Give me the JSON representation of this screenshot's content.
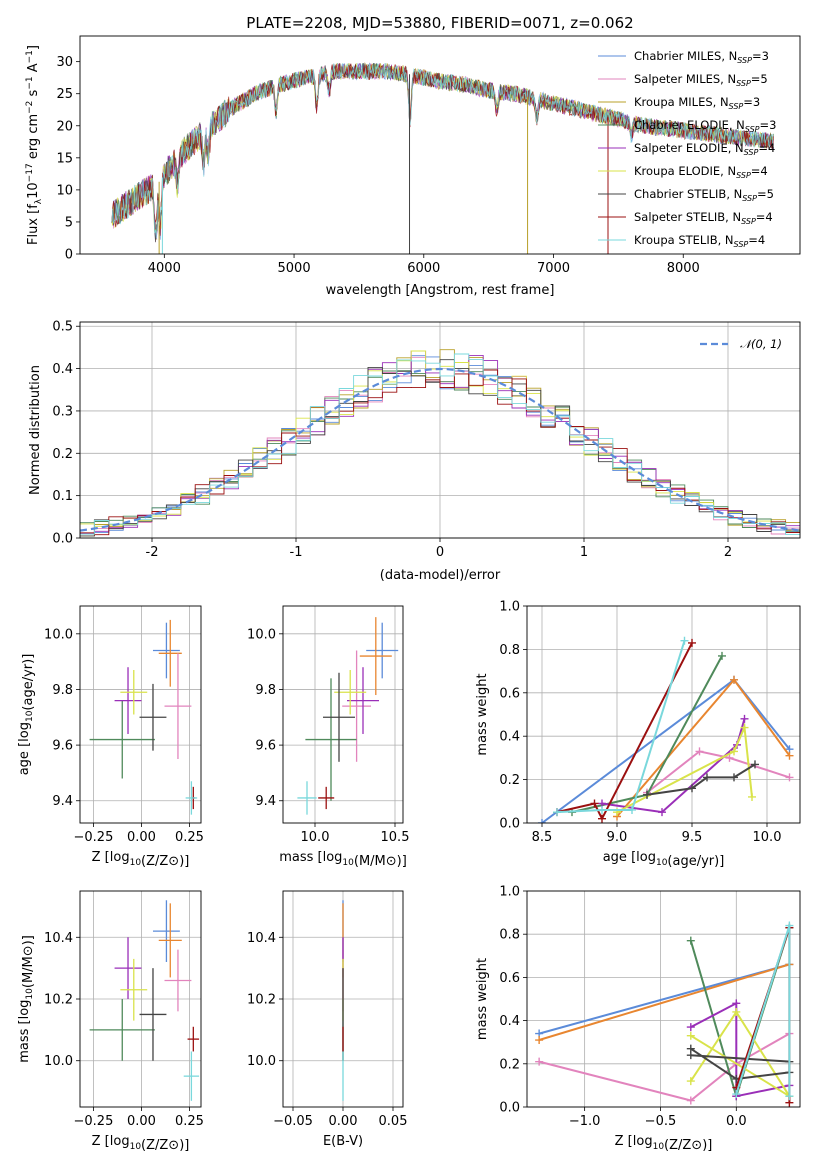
{
  "chart_data": [
    {
      "id": "spectrum",
      "type": "line",
      "title": "PLATE=2208, MJD=53880, FIBERID=0071, z=0.062",
      "xlabel": "wavelength [Angstrom, rest frame]",
      "ylabel": "Flux [f$_\\lambda$10$^{-17}$ erg cm$^{-2}$ s$^{-1}$ A$^{-1}$]",
      "ylabel_parts": [
        "Flux [f",
        "λ",
        "10",
        "−17",
        " erg cm",
        "−2",
        " s",
        "−1",
        " A",
        "−1",
        "]"
      ],
      "xlim": [
        3350,
        8900
      ],
      "ylim": [
        0,
        34
      ],
      "xticks": [
        4000,
        5000,
        6000,
        7000,
        8000
      ],
      "yticks": [
        0,
        5,
        10,
        15,
        20,
        25,
        30
      ],
      "grid": false,
      "legend_position": "top-right",
      "series": [
        {
          "name": "Chabrier MILES",
          "n": "3",
          "color": "#5b8bd9"
        },
        {
          "name": "Salpeter MILES",
          "n": "5",
          "color": "#e284bd"
        },
        {
          "name": "Kroupa MILES",
          "n": "3",
          "color": "#b8a02a"
        },
        {
          "name": "Chabrier ELODIE",
          "n": "3",
          "color": "#4f8a5b"
        },
        {
          "name": "Salpeter ELODIE",
          "n": "4",
          "color": "#9a2fb8"
        },
        {
          "name": "Kroupa ELODIE",
          "n": "4",
          "color": "#d9e34a"
        },
        {
          "name": "Chabrier STELIB",
          "n": "5",
          "color": "#444444"
        },
        {
          "name": "Salpeter STELIB",
          "n": "4",
          "color": "#9b1010"
        },
        {
          "name": "Kroupa STELIB",
          "n": "4",
          "color": "#7ad8dc"
        }
      ],
      "n_prefix": "N",
      "n_subscript": "SSP",
      "continuum": {
        "x": [
          3600,
          3800,
          3950,
          4100,
          4300,
          4500,
          4700,
          4900,
          5100,
          5300,
          5500,
          5700,
          5900,
          6100,
          6300,
          6500,
          6700,
          6900,
          7100,
          7300,
          7500,
          7700,
          7900,
          8100,
          8300,
          8500,
          8700
        ],
        "y": [
          6,
          9,
          11,
          15,
          19,
          22.5,
          25,
          26.5,
          27.5,
          28.5,
          28.5,
          28.5,
          28,
          27,
          26.5,
          25.5,
          25,
          24,
          23,
          22,
          21,
          20,
          19.5,
          19,
          18.5,
          18,
          17.5
        ]
      },
      "spectrum_range": [
        3590,
        8700
      ]
    },
    {
      "id": "residuals",
      "type": "line",
      "xlabel": "(data-model)/error",
      "ylabel": "Normed distribution",
      "xlim": [
        -2.5,
        2.5
      ],
      "ylim": [
        0,
        0.51
      ],
      "xticks": [
        -2,
        -1,
        0,
        1,
        2
      ],
      "yticks": [
        0.0,
        0.1,
        0.2,
        0.3,
        0.4,
        0.5
      ],
      "ytick_labels": [
        "0.0",
        "0.1",
        "0.2",
        "0.3",
        "0.4",
        "0.5"
      ],
      "grid": true,
      "legend": "𝒩(0, 1)",
      "legend_position": "top-right",
      "reference_color": "#5b8bd9",
      "bin_width": 0.1,
      "bin_start": -2.5,
      "n_bins": 50
    },
    {
      "id": "age-vs-metallicity",
      "type": "scatter",
      "xlabel": "Z [log10(Z/Z⊙)]",
      "ylabel": "age  [log10(age/yr)]",
      "xlim": [
        -0.32,
        0.31
      ],
      "ylim": [
        9.32,
        10.1
      ],
      "xticks": [
        -0.25,
        0.0,
        0.25
      ],
      "xtick_labels": [
        "−0.25",
        "0.00",
        "0.25"
      ],
      "yticks": [
        9.4,
        9.6,
        9.8,
        10.0
      ],
      "ytick_labels": [
        "9.4",
        "9.6",
        "9.8",
        "10.0"
      ],
      "grid": true,
      "errorbars": [
        {
          "color": "#5b8bd9",
          "x": 0.13,
          "y": 9.94,
          "xerr": 0.07,
          "yerr": 0.1
        },
        {
          "color": "#e88630",
          "x": 0.15,
          "y": 9.93,
          "xerr": 0.06,
          "yerr": 0.12
        },
        {
          "color": "#e284bd",
          "x": 0.19,
          "y": 9.74,
          "xerr": 0.07,
          "yerr": 0.19
        },
        {
          "color": "#4f8a5b",
          "x": -0.1,
          "y": 9.62,
          "xerr": 0.17,
          "yerr": 0.14
        },
        {
          "color": "#9a2fb8",
          "x": -0.07,
          "y": 9.76,
          "xerr": 0.07,
          "yerr": 0.12
        },
        {
          "color": "#d9e34a",
          "x": -0.04,
          "y": 9.79,
          "xerr": 0.07,
          "yerr": 0.08
        },
        {
          "color": "#444444",
          "x": 0.06,
          "y": 9.7,
          "xerr": 0.07,
          "yerr": 0.12
        },
        {
          "color": "#9b1010",
          "x": 0.27,
          "y": 9.41,
          "xerr": 0.01,
          "yerr": 0.04
        },
        {
          "color": "#7ad8dc",
          "x": 0.26,
          "y": 9.41,
          "xerr": 0.03,
          "yerr": 0.06
        }
      ]
    },
    {
      "id": "age-vs-mass",
      "type": "scatter",
      "xlabel": "mass [log10(M/M⊙)]",
      "xlim": [
        9.8,
        10.55
      ],
      "ylim": [
        9.32,
        10.1
      ],
      "xticks": [
        10.0,
        10.5
      ],
      "xtick_labels": [
        "10.0",
        "10.5"
      ],
      "yticks": [
        9.4,
        9.6,
        9.8,
        10.0
      ],
      "ytick_labels": [
        "9.4",
        "9.6",
        "9.8",
        "10.0"
      ],
      "grid": true,
      "errorbars": [
        {
          "color": "#5b8bd9",
          "x": 10.42,
          "y": 9.94,
          "xerr": 0.1,
          "yerr": 0.1
        },
        {
          "color": "#e88630",
          "x": 10.38,
          "y": 9.92,
          "xerr": 0.1,
          "yerr": 0.14
        },
        {
          "color": "#e284bd",
          "x": 10.26,
          "y": 9.74,
          "xerr": 0.09,
          "yerr": 0.2
        },
        {
          "color": "#4f8a5b",
          "x": 10.1,
          "y": 9.62,
          "xerr": 0.16,
          "yerr": 0.22
        },
        {
          "color": "#9a2fb8",
          "x": 10.3,
          "y": 9.76,
          "xerr": 0.1,
          "yerr": 0.12
        },
        {
          "color": "#d9e34a",
          "x": 10.22,
          "y": 9.79,
          "xerr": 0.1,
          "yerr": 0.08
        },
        {
          "color": "#444444",
          "x": 10.15,
          "y": 9.7,
          "xerr": 0.1,
          "yerr": 0.16
        },
        {
          "color": "#9b1010",
          "x": 10.07,
          "y": 9.41,
          "xerr": 0.05,
          "yerr": 0.04
        },
        {
          "color": "#7ad8dc",
          "x": 9.95,
          "y": 9.41,
          "xerr": 0.06,
          "yerr": 0.06
        }
      ]
    },
    {
      "id": "mass-weight-vs-age",
      "type": "line",
      "xlabel": "age  [log10(age/yr)]",
      "ylabel": "mass weight",
      "xlim": [
        8.4,
        10.22
      ],
      "ylim": [
        0,
        1.0
      ],
      "xticks": [
        8.5,
        9.0,
        9.5,
        10.0
      ],
      "xtick_labels": [
        "8.5",
        "9.0",
        "9.5",
        "10.0"
      ],
      "yticks": [
        0.0,
        0.2,
        0.4,
        0.6,
        0.8,
        1.0
      ],
      "ytick_labels": [
        "0.0",
        "0.2",
        "0.4",
        "0.6",
        "0.8",
        "1.0"
      ],
      "grid": true,
      "series": [
        {
          "color": "#5b8bd9",
          "x": [
            8.5,
            9.78,
            10.15
          ],
          "y": [
            0.0,
            0.66,
            0.34
          ]
        },
        {
          "color": "#e88630",
          "x": [
            9.0,
            9.78,
            10.15
          ],
          "y": [
            0.03,
            0.66,
            0.31
          ]
        },
        {
          "color": "#e284bd",
          "x": [
            9.2,
            9.55,
            9.75,
            10.15
          ],
          "y": [
            0.14,
            0.33,
            0.3,
            0.21
          ]
        },
        {
          "color": "#4f8a5b",
          "x": [
            8.7,
            9.2,
            9.7
          ],
          "y": [
            0.05,
            0.13,
            0.77
          ]
        },
        {
          "color": "#9a2fb8",
          "x": [
            8.9,
            9.3,
            9.8,
            9.85
          ],
          "y": [
            0.09,
            0.05,
            0.36,
            0.48
          ]
        },
        {
          "color": "#d9e34a",
          "x": [
            9.0,
            9.78,
            9.85,
            9.9
          ],
          "y": [
            0.05,
            0.33,
            0.44,
            0.12
          ]
        },
        {
          "color": "#444444",
          "x": [
            9.2,
            9.5,
            9.6,
            9.78,
            9.92
          ],
          "y": [
            0.13,
            0.16,
            0.21,
            0.21,
            0.27
          ]
        },
        {
          "color": "#9b1010",
          "x": [
            8.6,
            8.85,
            8.9,
            9.5
          ],
          "y": [
            0.05,
            0.09,
            0.02,
            0.83
          ]
        },
        {
          "color": "#7ad8dc",
          "x": [
            8.6,
            8.9,
            9.1,
            9.45
          ],
          "y": [
            0.05,
            0.06,
            0.06,
            0.84
          ]
        }
      ]
    },
    {
      "id": "mass-vs-metallicity",
      "type": "scatter",
      "xlabel": "Z [log10(Z/Z⊙)]",
      "ylabel": "mass [log10(M/M⊙)]",
      "xlim": [
        -0.32,
        0.31
      ],
      "ylim": [
        9.85,
        10.55
      ],
      "xticks": [
        -0.25,
        0.0,
        0.25
      ],
      "xtick_labels": [
        "−0.25",
        "0.00",
        "0.25"
      ],
      "yticks": [
        10.0,
        10.2,
        10.4
      ],
      "ytick_labels": [
        "10.0",
        "10.2",
        "10.4"
      ],
      "grid": true,
      "errorbars": [
        {
          "color": "#5b8bd9",
          "x": 0.13,
          "y": 10.42,
          "xerr": 0.07,
          "yerr": 0.1
        },
        {
          "color": "#e88630",
          "x": 0.15,
          "y": 10.39,
          "xerr": 0.06,
          "yerr": 0.12
        },
        {
          "color": "#e284bd",
          "x": 0.19,
          "y": 10.26,
          "xerr": 0.07,
          "yerr": 0.1
        },
        {
          "color": "#4f8a5b",
          "x": -0.1,
          "y": 10.1,
          "xerr": 0.17,
          "yerr": 0.1
        },
        {
          "color": "#9a2fb8",
          "x": -0.07,
          "y": 10.3,
          "xerr": 0.07,
          "yerr": 0.1
        },
        {
          "color": "#d9e34a",
          "x": -0.04,
          "y": 10.23,
          "xerr": 0.07,
          "yerr": 0.1
        },
        {
          "color": "#444444",
          "x": 0.06,
          "y": 10.15,
          "xerr": 0.07,
          "yerr": 0.15
        },
        {
          "color": "#9b1010",
          "x": 0.27,
          "y": 10.07,
          "xerr": 0.03,
          "yerr": 0.04
        },
        {
          "color": "#7ad8dc",
          "x": 0.26,
          "y": 9.95,
          "xerr": 0.04,
          "yerr": 0.08
        }
      ]
    },
    {
      "id": "mass-vs-ebv",
      "type": "scatter",
      "xlabel": "E(B-V)",
      "xlim": [
        -0.06,
        0.06
      ],
      "ylim": [
        9.85,
        10.55
      ],
      "xticks": [
        -0.05,
        0.0,
        0.05
      ],
      "xtick_labels": [
        "−0.05",
        "0.00",
        "0.05"
      ],
      "yticks": [
        10.0,
        10.2,
        10.4
      ],
      "ytick_labels": [
        "10.0",
        "10.2",
        "10.4"
      ],
      "grid": true,
      "errorbars": [
        {
          "color": "#5b8bd9",
          "x": 0.0,
          "y": 10.42,
          "xerr": 0,
          "yerr": 0.1
        },
        {
          "color": "#e88630",
          "x": 0.0,
          "y": 10.39,
          "xerr": 0,
          "yerr": 0.12
        },
        {
          "color": "#e284bd",
          "x": 0.0,
          "y": 10.26,
          "xerr": 0,
          "yerr": 0.1
        },
        {
          "color": "#4f8a5b",
          "x": 0.0,
          "y": 10.1,
          "xerr": 0,
          "yerr": 0.1
        },
        {
          "color": "#9a2fb8",
          "x": 0.0,
          "y": 10.3,
          "xerr": 0,
          "yerr": 0.1
        },
        {
          "color": "#d9e34a",
          "x": 0.0,
          "y": 10.23,
          "xerr": 0,
          "yerr": 0.1
        },
        {
          "color": "#444444",
          "x": 0.0,
          "y": 10.15,
          "xerr": 0,
          "yerr": 0.15
        },
        {
          "color": "#9b1010",
          "x": 0.0,
          "y": 10.07,
          "xerr": 0,
          "yerr": 0.04
        },
        {
          "color": "#7ad8dc",
          "x": 0.0,
          "y": 9.95,
          "xerr": 0,
          "yerr": 0.08
        }
      ]
    },
    {
      "id": "mass-weight-vs-metallicity",
      "type": "line",
      "xlabel": "Z [log10(Z/Z⊙)]",
      "ylabel": "mass weight",
      "xlim": [
        -1.38,
        0.42
      ],
      "ylim": [
        0,
        1.0
      ],
      "xticks": [
        -1.0,
        -0.5,
        0.0
      ],
      "xtick_labels": [
        "−1.0",
        "−0.5",
        "0.0"
      ],
      "yticks": [
        0.0,
        0.2,
        0.4,
        0.6,
        0.8,
        1.0
      ],
      "ytick_labels": [
        "0.0",
        "0.2",
        "0.4",
        "0.6",
        "0.8",
        "1.0"
      ],
      "grid": true,
      "series": [
        {
          "color": "#5b8bd9",
          "x": [
            -1.3,
            0.35
          ],
          "y": [
            0.34,
            0.66
          ]
        },
        {
          "color": "#e88630",
          "x": [
            -1.3,
            0.35
          ],
          "y": [
            0.31,
            0.66
          ]
        },
        {
          "color": "#e284bd",
          "x": [
            -1.3,
            -0.3,
            0.0,
            0.35
          ],
          "y": [
            0.21,
            0.03,
            0.2,
            0.34
          ]
        },
        {
          "color": "#4f8a5b",
          "x": [
            -0.3,
            0.0,
            0.35
          ],
          "y": [
            0.77,
            0.05,
            0.83
          ]
        },
        {
          "color": "#9a2fb8",
          "x": [
            -0.3,
            0.0,
            0.0,
            0.35
          ],
          "y": [
            0.37,
            0.48,
            0.05,
            0.1
          ]
        },
        {
          "color": "#d9e34a",
          "x": [
            -0.3,
            0.0,
            0.35,
            -0.3
          ],
          "y": [
            0.12,
            0.44,
            0.05,
            0.33
          ]
        },
        {
          "color": "#444444",
          "x": [
            -0.3,
            0.0,
            0.35,
            0.35,
            -0.3
          ],
          "y": [
            0.27,
            0.13,
            0.16,
            0.21,
            0.24
          ]
        },
        {
          "color": "#9b1010",
          "x": [
            0.0,
            0.35,
            0.35
          ],
          "y": [
            0.09,
            0.83,
            0.02
          ]
        },
        {
          "color": "#7ad8dc",
          "x": [
            0.0,
            0.35,
            0.35
          ],
          "y": [
            0.06,
            0.84,
            0.05
          ]
        }
      ]
    }
  ]
}
